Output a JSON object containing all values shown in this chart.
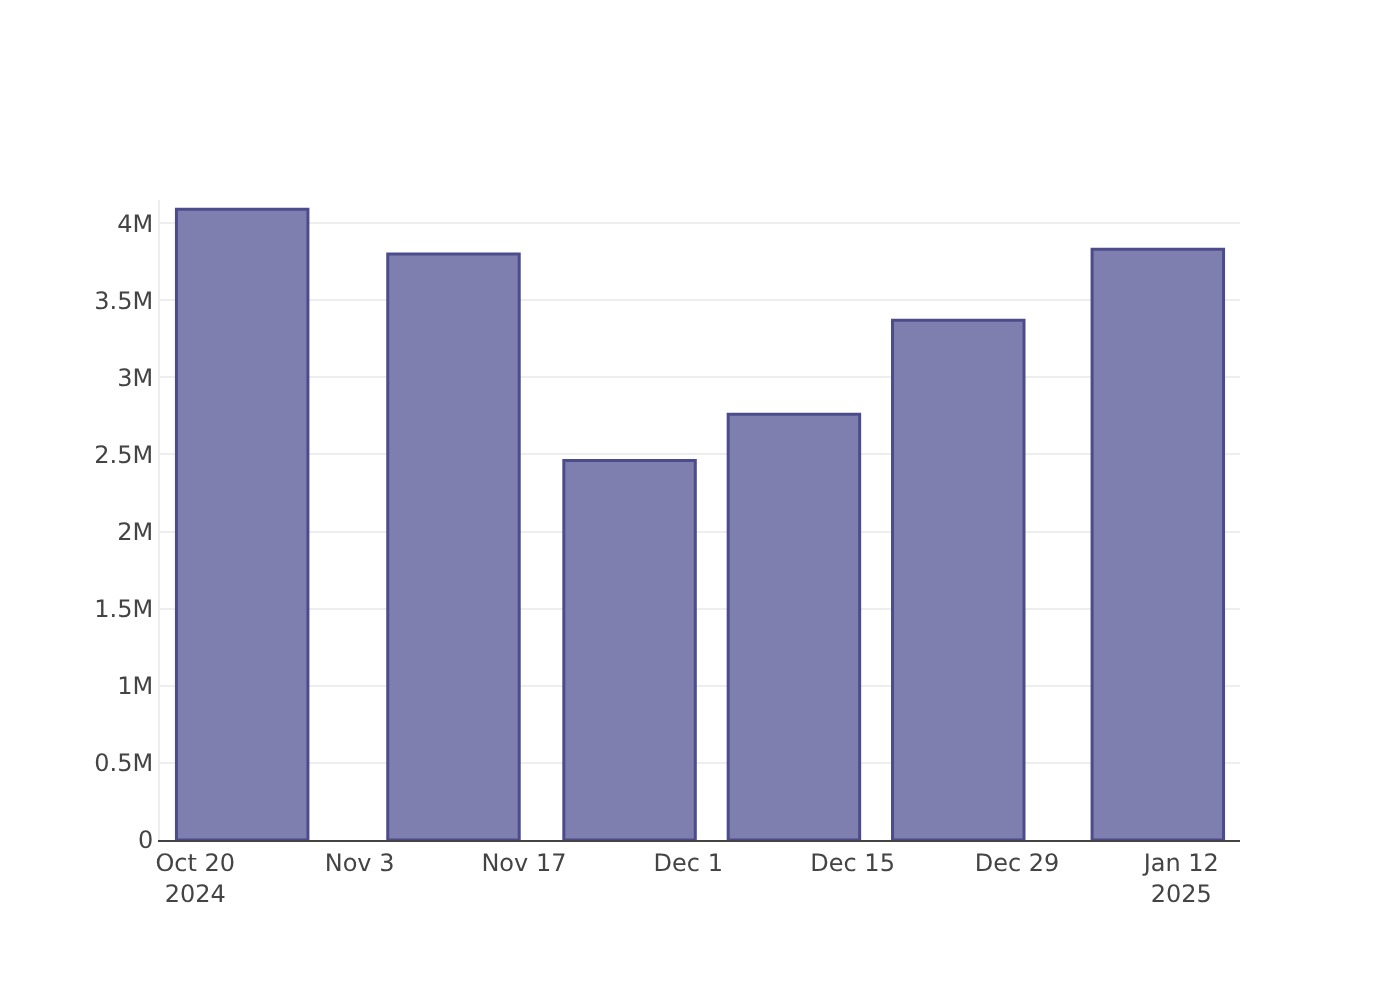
{
  "chart_data": {
    "type": "bar",
    "x": [
      "2024-10-24",
      "2024-11-11",
      "2024-11-26",
      "2024-12-10",
      "2024-12-24",
      "2025-01-10"
    ],
    "values": [
      4.09,
      3.8,
      2.46,
      2.76,
      3.37,
      3.83
    ],
    "color": "#7f7faf",
    "xlim": [
      "2024-10-17",
      "2025-01-17"
    ],
    "xticks": [
      {
        "value": "2024-10-20",
        "label": "Oct 20\n2024"
      },
      {
        "value": "2024-11-03",
        "label": "Nov 3"
      },
      {
        "value": "2024-11-17",
        "label": "Nov 17"
      },
      {
        "value": "2024-12-01",
        "label": "Dec 1"
      },
      {
        "value": "2024-12-15",
        "label": "Dec 15"
      },
      {
        "value": "2024-12-29",
        "label": "Dec 29"
      },
      {
        "value": "2025-01-12",
        "label": "Jan 12\n2025"
      }
    ],
    "ylim": [
      0,
      4.15
    ],
    "yticks": [
      0,
      {
        "value": 0.5,
        "label": "0.5M"
      },
      {
        "value": 1,
        "label": "1M"
      },
      {
        "value": 1.5,
        "label": "1.5M"
      },
      {
        "value": 2,
        "label": "2M"
      },
      {
        "value": 2.5,
        "label": "2.5M"
      },
      {
        "value": 3,
        "label": "3M"
      },
      {
        "value": 3.5,
        "label": "3.5M"
      },
      {
        "value": 4,
        "label": "4M"
      }
    ],
    "grid": "y"
  }
}
